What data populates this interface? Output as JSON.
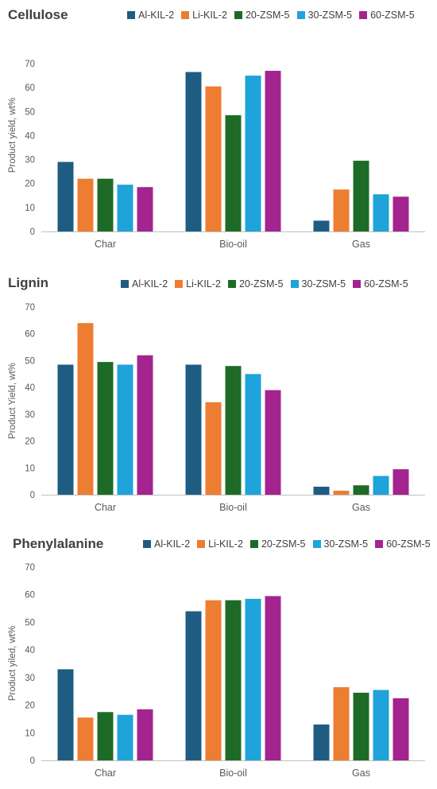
{
  "chart_data": [
    {
      "type": "bar",
      "title": "Cellulose",
      "ylabel": "Product yield, wt%",
      "xlabel": "",
      "categories": [
        "Char",
        "Bio-oil",
        "Gas"
      ],
      "ylim": [
        0,
        70
      ],
      "yticks": [
        "0",
        "10",
        "20",
        "30",
        "40",
        "50",
        "60",
        "70"
      ],
      "legend_position": "top",
      "grid": false,
      "series": [
        {
          "name": "Al-KIL-2",
          "color": "#1f5c82",
          "values": [
            29,
            66.5,
            4.5
          ]
        },
        {
          "name": "Li-KIL-2",
          "color": "#ed7d31",
          "values": [
            22,
            60.5,
            17.5
          ]
        },
        {
          "name": "20-ZSM-5",
          "color": "#1e6b27",
          "values": [
            22,
            48.5,
            29.5
          ]
        },
        {
          "name": "30-ZSM-5",
          "color": "#1ea3db",
          "values": [
            19.5,
            65,
            15.5
          ]
        },
        {
          "name": "60-ZSM-5",
          "color": "#a3238f",
          "values": [
            18.5,
            67,
            14.5
          ]
        }
      ]
    },
    {
      "type": "bar",
      "title": "Lignin",
      "ylabel": "Product Yield, wt%",
      "xlabel": "",
      "categories": [
        "Char",
        "Bio-oil",
        "Gas"
      ],
      "ylim": [
        0,
        70
      ],
      "yticks": [
        "0",
        "10",
        "20",
        "30",
        "40",
        "50",
        "60",
        "70"
      ],
      "legend_position": "top",
      "grid": false,
      "series": [
        {
          "name": "Al-KIL-2",
          "color": "#1f5c82",
          "values": [
            48.5,
            48.5,
            3
          ]
        },
        {
          "name": "Li-KIL-2",
          "color": "#ed7d31",
          "values": [
            64,
            34.5,
            1.5
          ]
        },
        {
          "name": "20-ZSM-5",
          "color": "#1e6b27",
          "values": [
            49.5,
            48,
            3.5
          ]
        },
        {
          "name": "30-ZSM-5",
          "color": "#1ea3db",
          "values": [
            48.5,
            45,
            7
          ]
        },
        {
          "name": "60-ZSM-5",
          "color": "#a3238f",
          "values": [
            52,
            39,
            9.5
          ]
        }
      ]
    },
    {
      "type": "bar",
      "title": "Phenylalanine",
      "ylabel": "Product yiled, wt%",
      "xlabel": "",
      "categories": [
        "Char",
        "Bio-oil",
        "Gas"
      ],
      "ylim": [
        0,
        70
      ],
      "yticks": [
        "0",
        "10",
        "20",
        "30",
        "40",
        "50",
        "60",
        "70"
      ],
      "legend_position": "top",
      "grid": false,
      "series": [
        {
          "name": "Al-KIL-2",
          "color": "#1f5c82",
          "values": [
            33,
            54,
            13
          ]
        },
        {
          "name": "Li-KIL-2",
          "color": "#ed7d31",
          "values": [
            15.5,
            58,
            26.5
          ]
        },
        {
          "name": "20-ZSM-5",
          "color": "#1e6b27",
          "values": [
            17.5,
            58,
            24.5
          ]
        },
        {
          "name": "30-ZSM-5",
          "color": "#1ea3db",
          "values": [
            16.5,
            58.5,
            25.5
          ]
        },
        {
          "name": "60-ZSM-5",
          "color": "#a3238f",
          "values": [
            18.5,
            59.5,
            22.5
          ]
        }
      ]
    }
  ]
}
